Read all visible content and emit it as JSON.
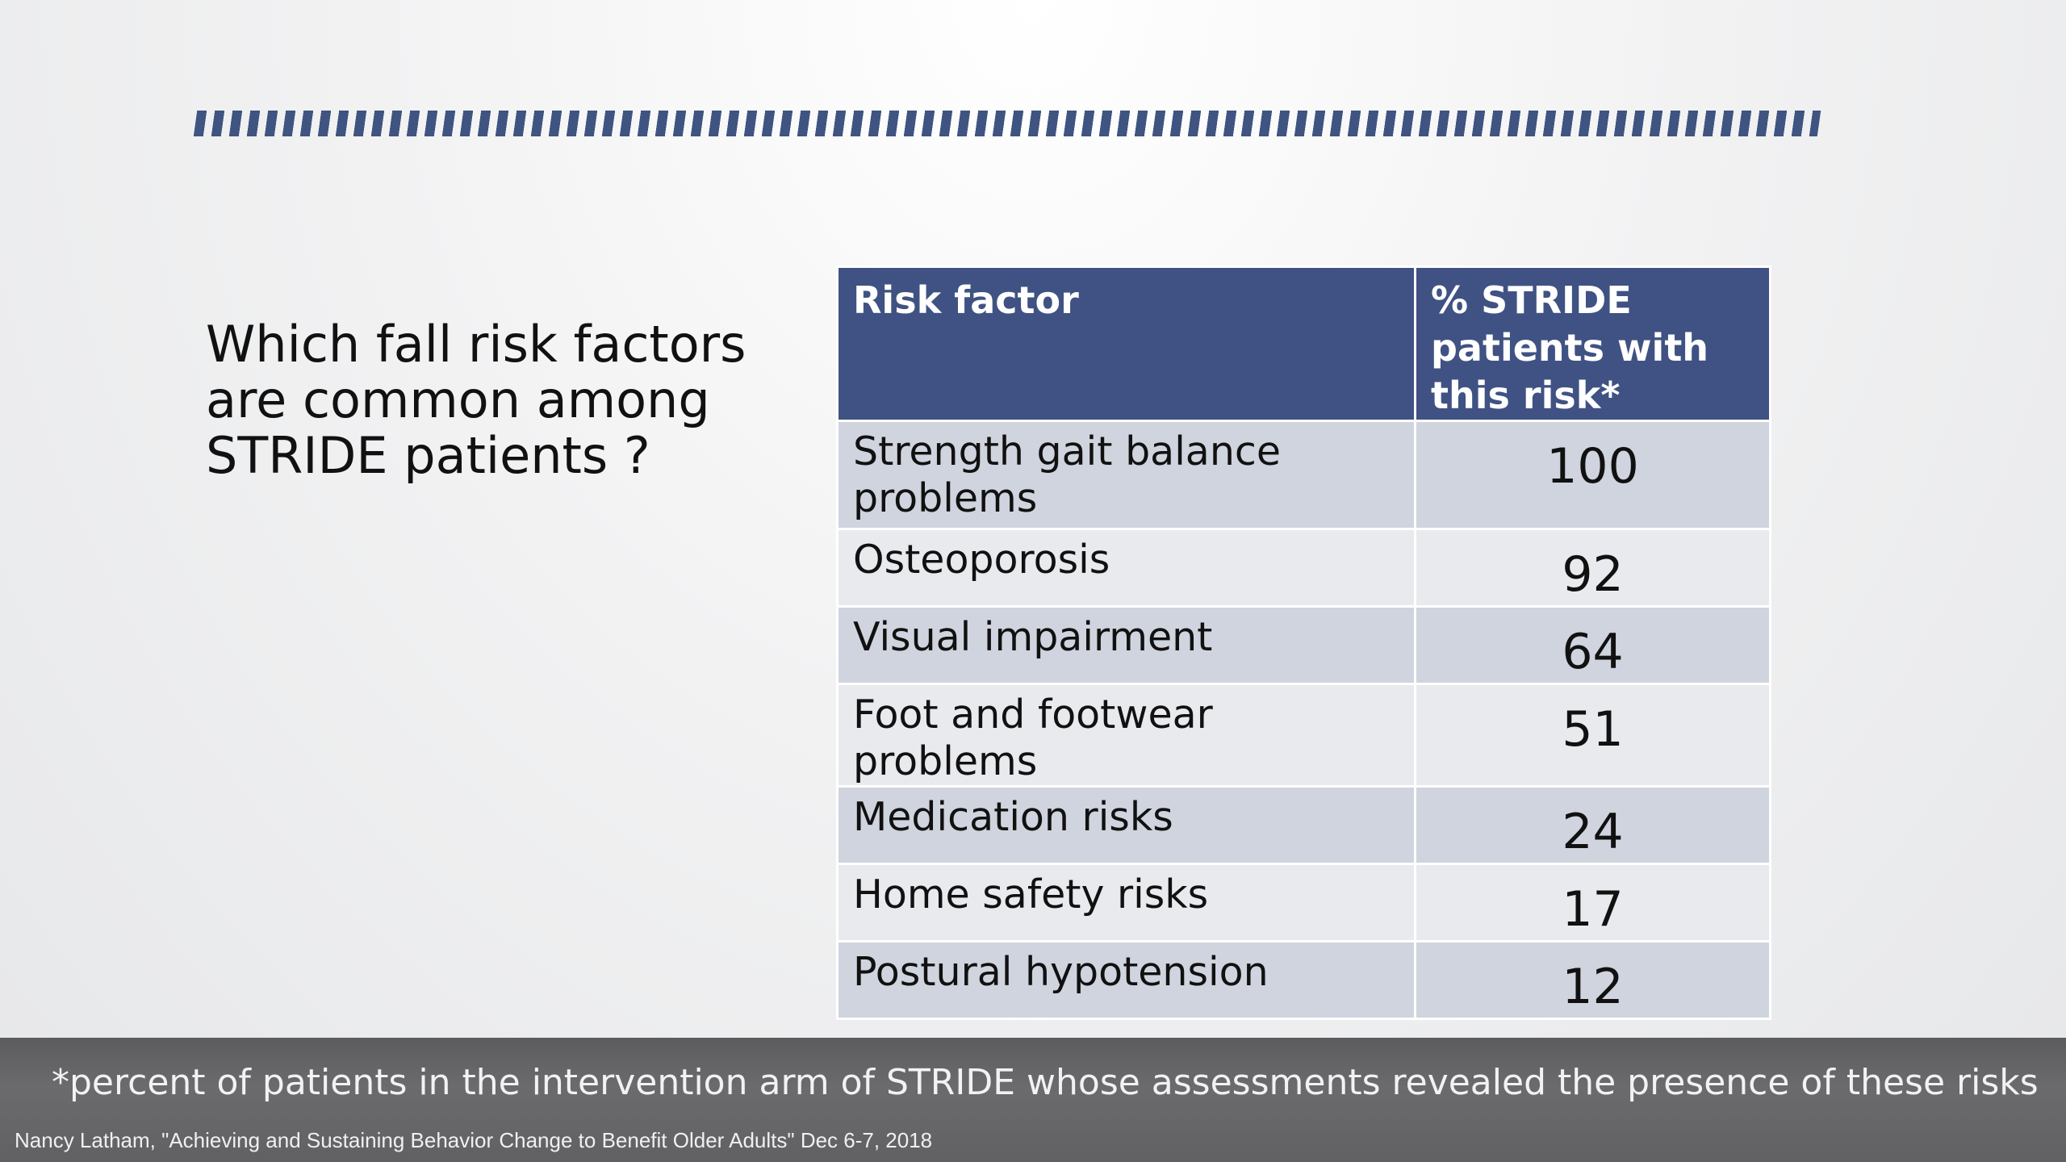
{
  "slide": {
    "question": "Which fall risk factors are common among STRIDE patients ?",
    "accent_color": "#3f5283"
  },
  "table": {
    "headers": [
      "Risk factor",
      "% STRIDE patients with this risk*"
    ],
    "rows": [
      {
        "factor": "Strength gait balance problems",
        "percent": "100"
      },
      {
        "factor": "Osteoporosis",
        "percent": "92"
      },
      {
        "factor": "Visual impairment",
        "percent": "64"
      },
      {
        "factor": "Foot and footwear problems",
        "percent": "51"
      },
      {
        "factor": "Medication risks",
        "percent": "24"
      },
      {
        "factor": "Home safety risks",
        "percent": "17"
      },
      {
        "factor": "Postural hypotension",
        "percent": "12"
      }
    ]
  },
  "footer": {
    "footnote": "*percent of patients in the intervention arm of STRIDE whose assessments revealed the presence of these risks",
    "citation": "Nancy Latham, \"Achieving and Sustaining Behavior Change to Benefit Older Adults\" Dec 6-7, 2018"
  }
}
